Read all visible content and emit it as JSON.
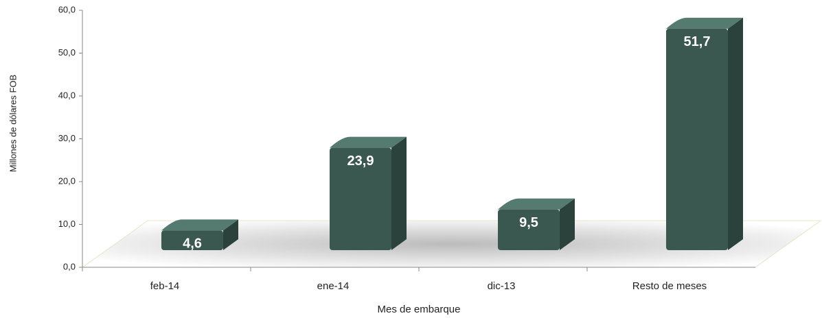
{
  "chart_data": {
    "type": "bar3d",
    "x_label": "Mes de embarque",
    "y_label": "Millones de dólares FOB",
    "categories": [
      "feb-14",
      "ene-14",
      "dic-13",
      "Resto de meses"
    ],
    "values": [
      4.6,
      23.9,
      9.5,
      51.7
    ],
    "value_labels": [
      "4,6",
      "23,9",
      "9,5",
      "51,7"
    ],
    "color": "#3a5750",
    "ylim": [
      0,
      60
    ],
    "yticks": [
      {
        "value": 0,
        "label": "0,0"
      },
      {
        "value": 10,
        "label": "10,0"
      },
      {
        "value": 20,
        "label": "20,0"
      },
      {
        "value": 30,
        "label": "30,0"
      },
      {
        "value": 40,
        "label": "40,0"
      },
      {
        "value": 50,
        "label": "50,0"
      },
      {
        "value": 60,
        "label": "60,0"
      }
    ]
  }
}
